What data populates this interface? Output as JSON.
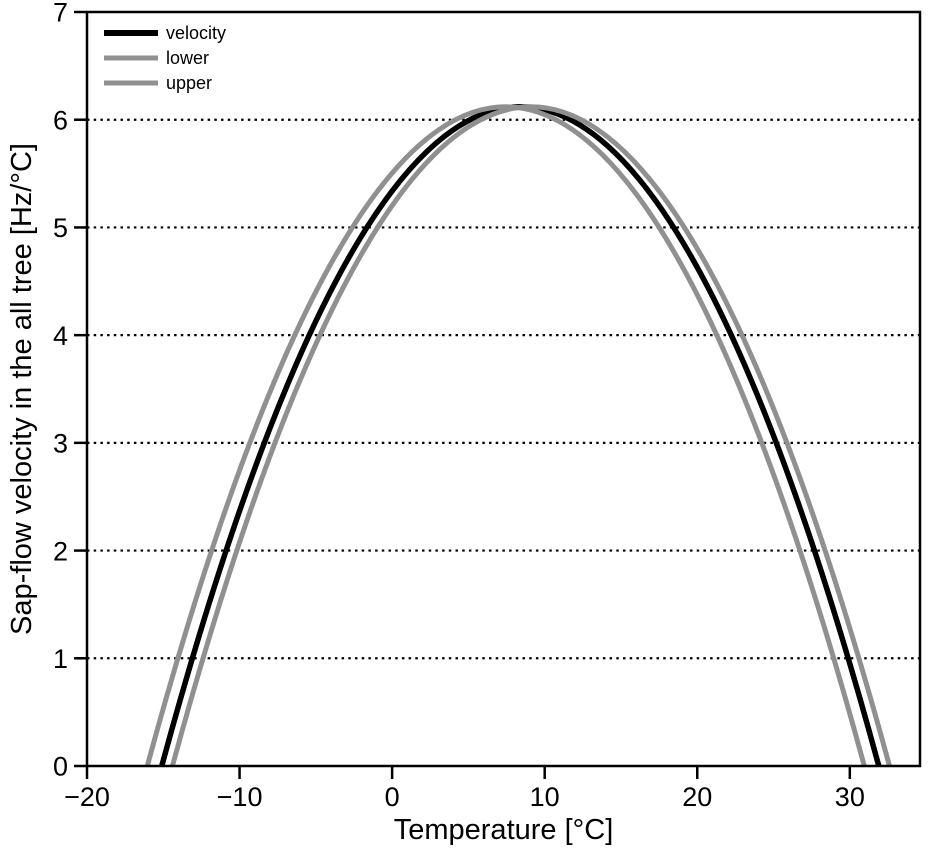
{
  "figure": {
    "background": "#ffffff",
    "frame_color": "#000000",
    "grid_color": "#000000",
    "gray_curve_color": "#909090",
    "black_curve_color": "#000000"
  },
  "chart_data": {
    "type": "line",
    "title": "",
    "xlabel": "Temperature [°C]",
    "ylabel": "Sap-flow velocity in the all tree [Hz/°C]",
    "xlim": [
      -20,
      34.6
    ],
    "ylim": [
      0,
      7
    ],
    "grid": {
      "horizontal_dotted_at": [
        1,
        2,
        3,
        4,
        5,
        6
      ],
      "vertical": false,
      "color": "#000000"
    },
    "x_ticks": {
      "values": [
        -20,
        -10,
        0,
        10,
        20,
        30
      ],
      "labels": [
        "−20",
        "−10",
        "0",
        "10",
        "20",
        "30"
      ]
    },
    "y_ticks": {
      "values": [
        0,
        1,
        2,
        3,
        4,
        5,
        6,
        7
      ],
      "labels": [
        "0",
        "1",
        "2",
        "3",
        "4",
        "5",
        "6",
        "7"
      ]
    },
    "legend": {
      "position": "top-left"
    },
    "series": [
      {
        "name": "velocity",
        "color": "#000000",
        "line_width": 5.5,
        "legend_sample_width": 6,
        "parabola": {
          "v_max": 6.12,
          "t_opt": 8.4,
          "t_zero_left": -15.1,
          "t_zero_right": 31.9
        },
        "points": {
          "x": [
            -15.1,
            -15,
            -10,
            -5,
            0,
            5,
            8.4,
            10,
            15,
            20,
            25,
            30,
            31.9
          ],
          "y": [
            0,
            0.05,
            2.37,
            4.13,
            5.34,
            5.99,
            6.12,
            6.09,
            5.64,
            4.63,
            3.07,
            0.95,
            0
          ]
        }
      },
      {
        "name": "lower",
        "color": "#909090",
        "line_width": 5,
        "legend_sample_width": 5,
        "parabola": {
          "v_max": 6.12,
          "t_opt": 7.45,
          "t_zero_left": -16.05,
          "t_zero_right": 30.95
        },
        "points": {
          "x": [
            -16.05,
            -15,
            -10,
            -5,
            0,
            5,
            7.45,
            10,
            15,
            20,
            25,
            30,
            30.95
          ],
          "y": [
            0,
            0.53,
            2.75,
            4.4,
            5.51,
            6.05,
            6.12,
            6.05,
            5.49,
            4.37,
            2.71,
            0.49,
            0
          ]
        }
      },
      {
        "name": "upper",
        "color": "#909090",
        "line_width": 5,
        "legend_sample_width": 5,
        "parabola": {
          "v_max": 6.12,
          "t_opt": 9.1,
          "t_zero_left": -14.4,
          "t_zero_right": 32.6
        },
        "points": {
          "x": [
            -14.4,
            -10,
            -5,
            0,
            5,
            9.1,
            10,
            15,
            20,
            25,
            30,
            32.6
          ],
          "y": [
            0,
            2.08,
            3.92,
            5.2,
            5.93,
            6.12,
            6.11,
            5.73,
            4.8,
            3.32,
            1.28,
            0
          ]
        }
      }
    ]
  }
}
